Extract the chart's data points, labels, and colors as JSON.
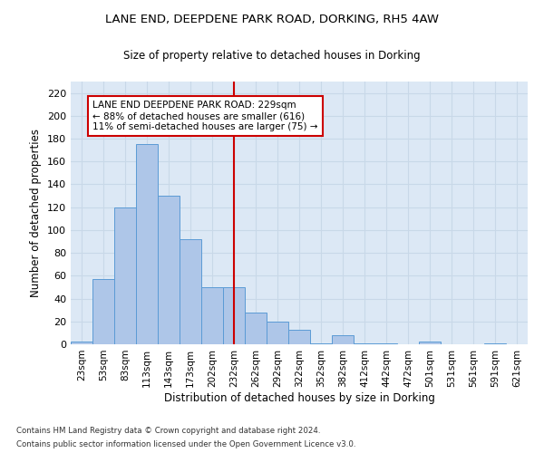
{
  "title": "LANE END, DEEPDENE PARK ROAD, DORKING, RH5 4AW",
  "subtitle": "Size of property relative to detached houses in Dorking",
  "xlabel": "Distribution of detached houses by size in Dorking",
  "ylabel": "Number of detached properties",
  "bin_labels": [
    "23sqm",
    "53sqm",
    "83sqm",
    "113sqm",
    "143sqm",
    "173sqm",
    "202sqm",
    "232sqm",
    "262sqm",
    "292sqm",
    "322sqm",
    "352sqm",
    "382sqm",
    "412sqm",
    "442sqm",
    "472sqm",
    "501sqm",
    "531sqm",
    "561sqm",
    "591sqm",
    "621sqm"
  ],
  "bar_heights": [
    2,
    57,
    120,
    175,
    130,
    92,
    50,
    50,
    28,
    20,
    13,
    1,
    8,
    1,
    1,
    0,
    2,
    0,
    0,
    1,
    0
  ],
  "bar_color": "#aec6e8",
  "bar_edge_color": "#5b9bd5",
  "vline_color": "#cc0000",
  "annotation_text": "LANE END DEEPDENE PARK ROAD: 229sqm\n← 88% of detached houses are smaller (616)\n11% of semi-detached houses are larger (75) →",
  "annotation_box_color": "#ffffff",
  "annotation_box_edge": "#cc0000",
  "grid_color": "#c8d8e8",
  "bg_color": "#dce8f5",
  "ylim": [
    0,
    230
  ],
  "yticks": [
    0,
    20,
    40,
    60,
    80,
    100,
    120,
    140,
    160,
    180,
    200,
    220
  ],
  "footer1": "Contains HM Land Registry data © Crown copyright and database right 2024.",
  "footer2": "Contains public sector information licensed under the Open Government Licence v3.0."
}
